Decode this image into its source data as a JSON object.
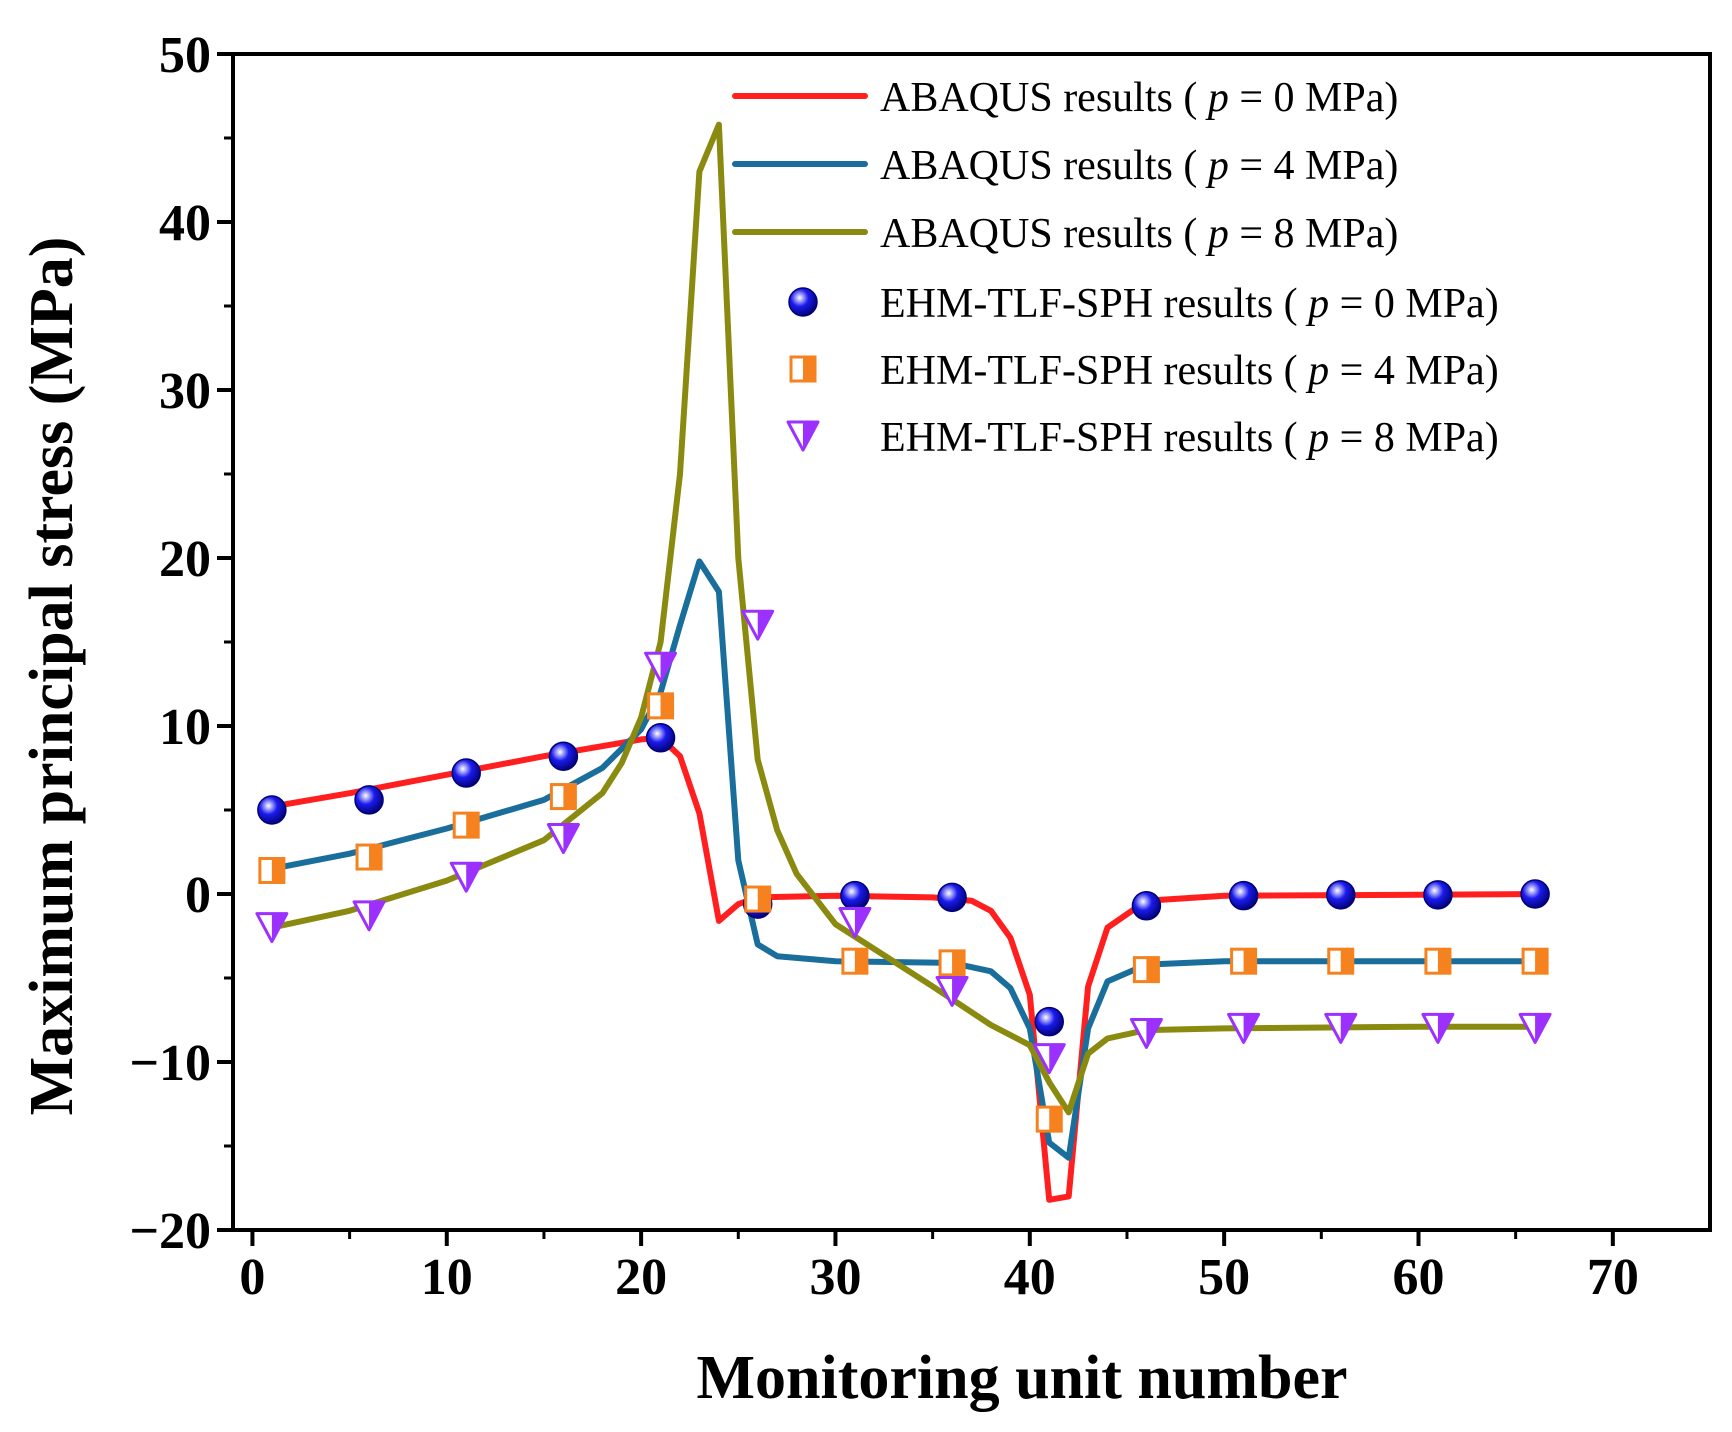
{
  "chart_data": {
    "type": "line",
    "title": "",
    "xlabel": "Monitoring unit number",
    "ylabel": "Maximum principal stress (MPa)",
    "xlim": [
      -1,
      75
    ],
    "ylim": [
      -20,
      50
    ],
    "xticks": [
      0,
      10,
      20,
      30,
      40,
      50,
      60,
      70
    ],
    "yticks": [
      -20,
      -10,
      0,
      10,
      20,
      30,
      40,
      50
    ],
    "xtick_labels": [
      "0",
      "10",
      "20",
      "30",
      "40",
      "50",
      "60",
      "70"
    ],
    "ytick_labels": [
      "−20",
      "−10",
      "0",
      "10",
      "20",
      "30",
      "40",
      "50"
    ],
    "grid": false,
    "legend_position": "top-right",
    "colors": {
      "abaqus_p0": "#ff1f1f",
      "abaqus_p4": "#1a6e9c",
      "abaqus_p8": "#8a8a10",
      "sph_p0": "#1a1aee",
      "sph_p4": "#f5821f",
      "sph_p8": "#9b30ff"
    },
    "series": [
      {
        "name": "ABAQUS results ( p = 0 MPa)",
        "legend_prefix": "ABAQUS results ( ",
        "legend_var": "p",
        "legend_suffix": " = 0 MPa)",
        "kind": "line",
        "color_key": "abaqus_p0",
        "x": [
          1,
          5,
          10,
          15,
          19,
          20,
          21,
          22,
          23,
          24,
          25,
          26,
          30,
          35,
          37,
          38,
          39,
          40,
          41,
          42,
          43,
          44,
          46,
          50,
          60,
          66
        ],
        "y": [
          5.2,
          6.0,
          7.1,
          8.2,
          9.0,
          9.2,
          9.3,
          8.2,
          4.8,
          -1.6,
          -0.6,
          -0.2,
          -0.1,
          -0.2,
          -0.4,
          -1.0,
          -2.6,
          -6.0,
          -18.2,
          -18.0,
          -5.5,
          -2.0,
          -0.4,
          -0.1,
          -0.05,
          0.0
        ]
      },
      {
        "name": "ABAQUS results ( p = 4 MPa)",
        "legend_prefix": "ABAQUS results ( ",
        "legend_var": "p",
        "legend_suffix": " = 4 MPa)",
        "kind": "line",
        "color_key": "abaqus_p4",
        "x": [
          1,
          5,
          10,
          15,
          18,
          20,
          21,
          22,
          23,
          24,
          25,
          26,
          27,
          30,
          36,
          38,
          39,
          40,
          41,
          42,
          43,
          44,
          46,
          50,
          60,
          66
        ],
        "y": [
          1.5,
          2.4,
          3.9,
          5.6,
          7.5,
          9.8,
          12.0,
          16.0,
          19.8,
          18.0,
          2.0,
          -3.0,
          -3.7,
          -4.0,
          -4.1,
          -4.6,
          -5.6,
          -8.0,
          -14.8,
          -15.7,
          -8.0,
          -5.2,
          -4.2,
          -4.0,
          -4.0,
          -4.0
        ]
      },
      {
        "name": "ABAQUS results ( p = 8 MPa)",
        "legend_prefix": "ABAQUS results ( ",
        "legend_var": "p",
        "legend_suffix": " = 8 MPa)",
        "kind": "line",
        "color_key": "abaqus_p8",
        "x": [
          1,
          5,
          10,
          15,
          18,
          19,
          20,
          21,
          22,
          23,
          24,
          25,
          26,
          27,
          28,
          30,
          35,
          38,
          40,
          41,
          42,
          43,
          44,
          46,
          50,
          60,
          66
        ],
        "y": [
          -2.0,
          -1.0,
          0.8,
          3.2,
          6.0,
          7.8,
          10.5,
          15.0,
          25.0,
          43.0,
          45.8,
          20.0,
          8.0,
          3.8,
          1.2,
          -1.8,
          -5.5,
          -7.8,
          -9.0,
          -11.2,
          -13.0,
          -9.5,
          -8.6,
          -8.1,
          -8.0,
          -7.9,
          -7.9
        ]
      },
      {
        "name": "EHM-TLF-SPH results ( p = 0 MPa)",
        "legend_prefix": "EHM-TLF-SPH results ( ",
        "legend_var": "p",
        "legend_suffix": " = 0 MPa)",
        "kind": "marker",
        "marker": "circle",
        "color_key": "sph_p0",
        "x": [
          1,
          6,
          11,
          16,
          21,
          26,
          31,
          36,
          41,
          46,
          51,
          56,
          61,
          66
        ],
        "y": [
          5.0,
          5.6,
          7.2,
          8.2,
          9.3,
          -0.6,
          -0.1,
          -0.2,
          -7.6,
          -0.7,
          -0.1,
          -0.05,
          -0.05,
          0.0
        ]
      },
      {
        "name": "EHM-TLF-SPH results ( p = 4 MPa)",
        "legend_prefix": "EHM-TLF-SPH results ( ",
        "legend_var": "p",
        "legend_suffix": " = 4 MPa)",
        "kind": "marker",
        "marker": "half-square",
        "color_key": "sph_p4",
        "x": [
          1,
          6,
          11,
          16,
          21,
          26,
          31,
          36,
          41,
          46,
          51,
          56,
          61,
          66
        ],
        "y": [
          1.4,
          2.2,
          4.1,
          5.8,
          11.2,
          -0.3,
          -4.0,
          -4.1,
          -13.4,
          -4.5,
          -4.0,
          -4.0,
          -4.0,
          -4.0
        ]
      },
      {
        "name": "EHM-TLF-SPH results ( p = 8 MPa)",
        "legend_prefix": "EHM-TLF-SPH results ( ",
        "legend_var": "p",
        "legend_suffix": " = 8 MPa)",
        "kind": "marker",
        "marker": "half-triangle-down",
        "color_key": "sph_p8",
        "x": [
          1,
          6,
          11,
          16,
          21,
          26,
          31,
          36,
          41,
          46,
          51,
          56,
          61,
          66
        ],
        "y": [
          -2.0,
          -1.3,
          1.0,
          3.3,
          13.5,
          16.0,
          -1.7,
          -5.8,
          -9.8,
          -8.3,
          -8.0,
          -8.0,
          -8.0,
          -8.0
        ]
      }
    ]
  }
}
